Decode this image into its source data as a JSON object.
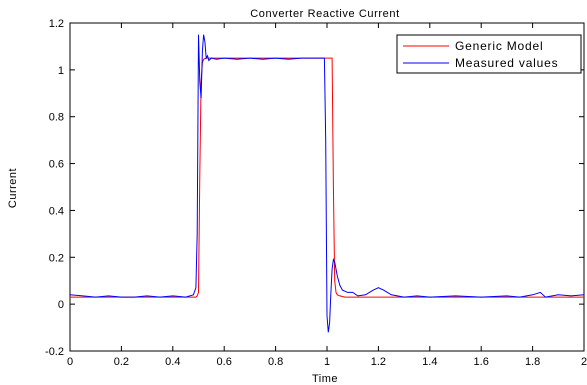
{
  "chart_data": {
    "type": "line",
    "title": "Converter Reactive Current",
    "xlabel": "Time",
    "ylabel": "Current",
    "xlim": [
      0,
      2
    ],
    "ylim": [
      -0.2,
      1.2
    ],
    "xticks": [
      0,
      0.2,
      0.4,
      0.6,
      0.8,
      1,
      1.2,
      1.4,
      1.6,
      1.8,
      2
    ],
    "xtick_labels": [
      "0",
      "0.2",
      "0.4",
      "0.6",
      "0.8",
      "1",
      "1.2",
      "1.4",
      "1.6",
      "1.8",
      "2"
    ],
    "yticks": [
      -0.2,
      0,
      0.2,
      0.4,
      0.6,
      0.8,
      1,
      1.2
    ],
    "ytick_labels": [
      "-0.2",
      "0",
      "0.2",
      "0.4",
      "0.6",
      "0.8",
      "1",
      "1.2"
    ],
    "grid": false,
    "legend": {
      "placement": "top-right"
    },
    "series": [
      {
        "name": "Generic Model",
        "color": "#ff0000",
        "x": [
          0,
          0.49,
          0.495,
          0.5,
          0.505,
          0.51,
          0.515,
          0.52,
          0.53,
          0.55,
          0.6,
          0.8,
          1.0,
          1.02,
          1.025,
          1.03,
          1.035,
          1.04,
          1.05,
          1.07,
          1.1,
          1.5,
          2.0
        ],
        "y": [
          0.03,
          0.03,
          0.035,
          0.05,
          0.55,
          0.95,
          1.03,
          1.045,
          1.05,
          1.05,
          1.05,
          1.05,
          1.05,
          1.05,
          0.5,
          0.1,
          0.05,
          0.04,
          0.035,
          0.03,
          0.03,
          0.03,
          0.03
        ]
      },
      {
        "name": "Measured values",
        "color": "#0000ff",
        "x": [
          0,
          0.05,
          0.1,
          0.15,
          0.2,
          0.25,
          0.3,
          0.35,
          0.4,
          0.45,
          0.48,
          0.49,
          0.495,
          0.5,
          0.505,
          0.51,
          0.515,
          0.52,
          0.525,
          0.53,
          0.535,
          0.54,
          0.55,
          0.57,
          0.6,
          0.65,
          0.7,
          0.75,
          0.8,
          0.85,
          0.9,
          0.95,
          0.99,
          0.995,
          1.0,
          1.005,
          1.01,
          1.015,
          1.02,
          1.025,
          1.03,
          1.04,
          1.05,
          1.06,
          1.08,
          1.1,
          1.12,
          1.15,
          1.18,
          1.2,
          1.22,
          1.25,
          1.3,
          1.35,
          1.4,
          1.5,
          1.6,
          1.7,
          1.75,
          1.8,
          1.83,
          1.85,
          1.9,
          1.95,
          2.0
        ],
        "y": [
          0.04,
          0.035,
          0.03,
          0.035,
          0.03,
          0.03,
          0.035,
          0.03,
          0.035,
          0.03,
          0.04,
          0.07,
          0.3,
          1.15,
          0.95,
          0.88,
          1.08,
          1.15,
          1.12,
          1.05,
          1.06,
          1.04,
          1.05,
          1.045,
          1.05,
          1.045,
          1.05,
          1.045,
          1.05,
          1.045,
          1.05,
          1.05,
          1.05,
          0.7,
          -0.05,
          -0.12,
          -0.08,
          0.05,
          0.15,
          0.19,
          0.18,
          0.12,
          0.08,
          0.06,
          0.05,
          0.05,
          0.035,
          0.04,
          0.06,
          0.07,
          0.06,
          0.04,
          0.03,
          0.035,
          0.03,
          0.035,
          0.03,
          0.035,
          0.03,
          0.04,
          0.05,
          0.03,
          0.04,
          0.035,
          0.04
        ]
      }
    ]
  }
}
